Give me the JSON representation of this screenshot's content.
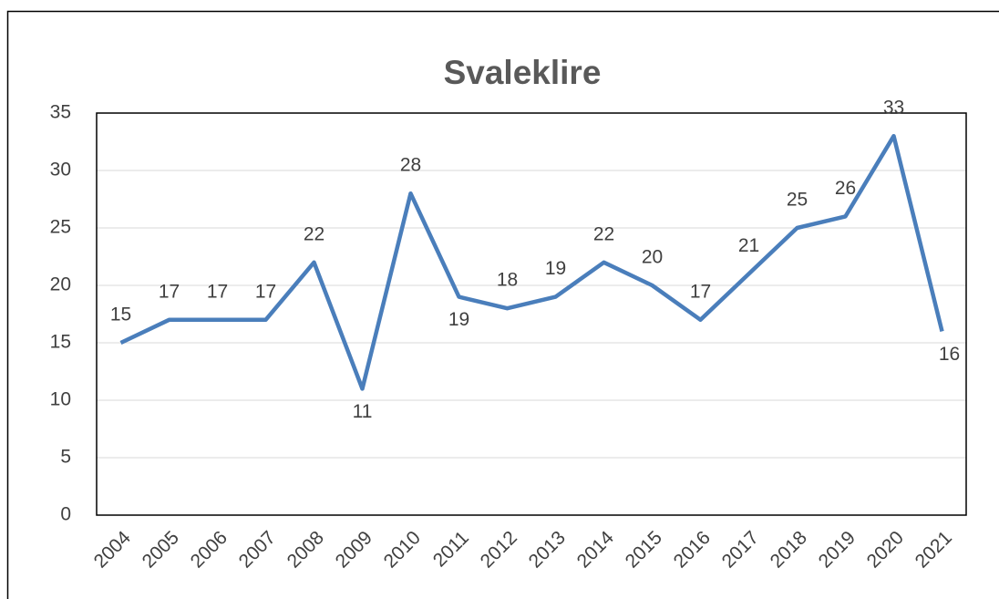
{
  "chart_data": {
    "type": "line",
    "title": "Svaleklire",
    "categories": [
      "2004",
      "2005",
      "2006",
      "2007",
      "2008",
      "2009",
      "2010",
      "2011",
      "2012",
      "2013",
      "2014",
      "2015",
      "2016",
      "2017",
      "2018",
      "2019",
      "2020",
      "2021"
    ],
    "values": [
      15,
      17,
      17,
      17,
      22,
      11,
      28,
      19,
      18,
      19,
      22,
      20,
      17,
      21,
      25,
      26,
      33,
      16
    ],
    "color": "#4a7ebb",
    "ylim": [
      0,
      35
    ],
    "yticks": [
      0,
      5,
      10,
      15,
      20,
      25,
      30,
      35
    ],
    "grid": true
  }
}
